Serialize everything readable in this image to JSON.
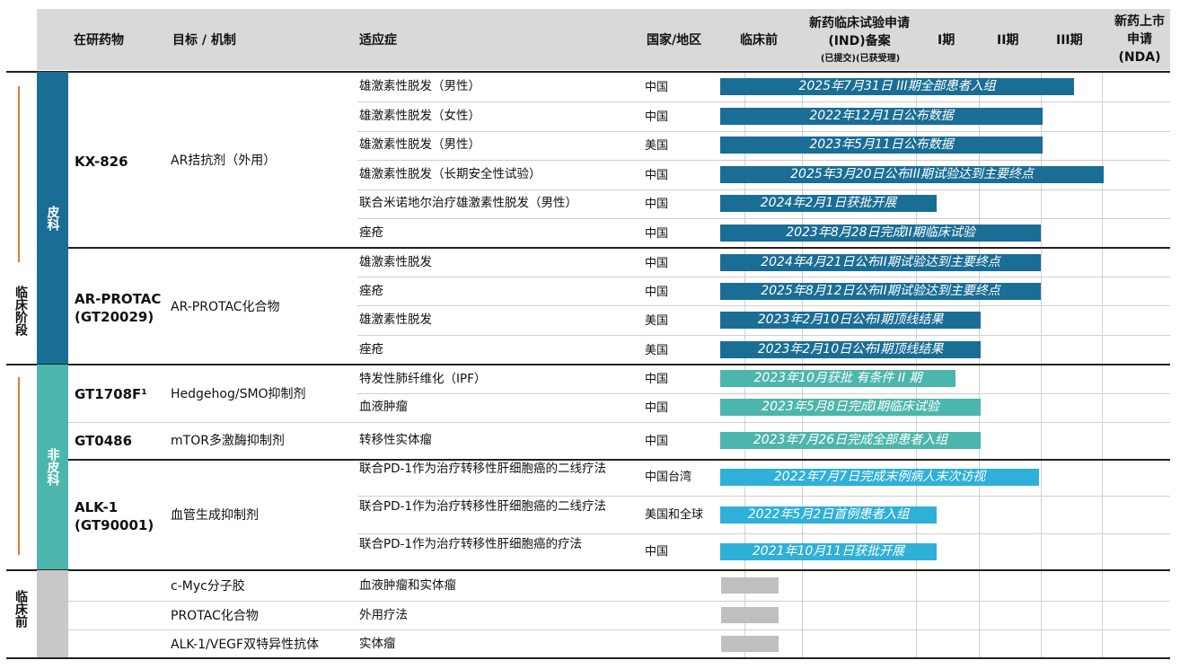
{
  "header": {
    "drug": "在研药物",
    "target": "目标 / 机制",
    "indication": "适应症",
    "country": "国家/地区",
    "preclinical": "临床前",
    "ind_title": "新药临床试验申请(IND)备案",
    "ind_sub": "(已提交)(已获受理)",
    "phase1": "I期",
    "phase2": "II期",
    "phase3": "III期",
    "nda": "新药上市申请(NDA)"
  },
  "side": {
    "clinical": "临床阶段",
    "preclinical": "临床前"
  },
  "categories": {
    "derm": "皮科",
    "nonderm": "非皮科"
  },
  "drugs": {
    "kx826": {
      "name": "KX-826",
      "mech": "AR拮抗剂（外用）"
    },
    "arprotac": {
      "name": "AR-PROTAC (GT20029)",
      "mech": "AR-PROTAC化合物"
    },
    "gt1708f": {
      "name": "GT1708F¹",
      "mech": "Hedgehog/SMO抑制剂"
    },
    "gt0486": {
      "name": "GT0486",
      "mech": "mTOR多激酶抑制剂"
    },
    "alk1": {
      "name": "ALK-1 (GT90001)",
      "mech": "血管生成抑制剂"
    }
  },
  "rows": [
    {
      "indication": "雄激素性脱发（男性）",
      "country": "中国",
      "status": "2025年7月31日 III期全部患者入组",
      "color": "#1a6e96"
    },
    {
      "indication": "雄激素性脱发（女性）",
      "country": "中国",
      "status": "2022年12月1日公布数据",
      "color": "#1a6e96"
    },
    {
      "indication": "雄激素性脱发（男性）",
      "country": "美国",
      "status": "2023年5月11日公布数据",
      "color": "#1a6e96"
    },
    {
      "indication": "雄激素性脱发（长期安全性试验）",
      "country": "中国",
      "status": "2025年3月20日公布III期试验达到主要终点",
      "color": "#1a6e96"
    },
    {
      "indication": "联合米诺地尔治疗雄激素性脱发（男性）",
      "country": "中国",
      "status": "2024年2月1日获批开展",
      "color": "#1a6e96"
    },
    {
      "indication": "痤疮",
      "country": "中国",
      "status": "2023年8月28日完成II期临床试验",
      "color": "#1a6e96"
    },
    {
      "indication": "雄激素性脱发",
      "country": "中国",
      "status": "2024年4月21日公布II期试验达到主要终点",
      "color": "#1a6e96"
    },
    {
      "indication": "痤疮",
      "country": "中国",
      "status": "2025年8月12日公布II期试验达到主要终点",
      "color": "#1a6e96"
    },
    {
      "indication": "雄激素性脱发",
      "country": "美国",
      "status": "2023年2月10日公布I期顶线结果",
      "color": "#1a6e96"
    },
    {
      "indication": "痤疮",
      "country": "美国",
      "status": "2023年2月10日公布I期顶线结果",
      "color": "#1a6e96"
    },
    {
      "indication": "特发性肺纤维化（IPF）",
      "country": "中国",
      "status": "2023年10月获批 有条件 II 期",
      "color": "#4db6ac"
    },
    {
      "indication": "血液肿瘤",
      "country": "中国",
      "status": "2023年5月8日完成I期临床试验",
      "color": "#4db6ac"
    },
    {
      "indication": "转移性实体瘤",
      "country": "中国",
      "status": "2023年7月26日完成全部患者入组",
      "color": "#4db6ac"
    },
    {
      "indication": "联合PD-1作为治疗转移性肝细胞癌的二线疗法",
      "country": "中国台湾",
      "status": "2022年7月7日完成末例病人末次访视",
      "color": "#2fb0d8"
    },
    {
      "indication": "联合PD-1作为治疗转移性肝细胞癌的二线疗法",
      "country": "美国和全球",
      "status": "2022年5月2日首例患者入组",
      "color": "#2fb0d8"
    },
    {
      "indication": "联合PD-1作为治疗转移性肝细胞癌的疗法",
      "country": "中国",
      "status": "2021年10月11日获批开展",
      "color": "#2fb0d8"
    }
  ],
  "preclinical_rows": [
    {
      "mech": "c-Myc分子胶",
      "indication": "血液肿瘤和实体瘤"
    },
    {
      "mech": "PROTAC化合物",
      "indication": "外用疗法"
    },
    {
      "mech": "ALK-1/VEGF双特异性抗体",
      "indication": "实体瘤"
    }
  ]
}
